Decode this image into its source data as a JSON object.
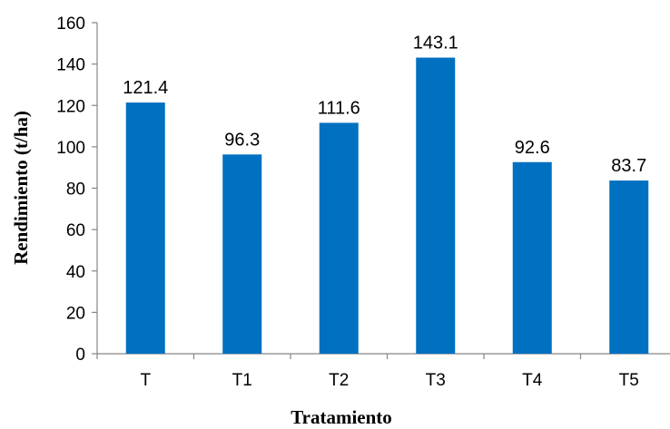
{
  "chart_data": {
    "type": "bar",
    "title": "",
    "xlabel": "Tratamiento",
    "ylabel": "Rendimiento (t/ha)",
    "categories": [
      "T",
      "T1",
      "T2",
      "T3",
      "T4",
      "T5"
    ],
    "values": [
      121.4,
      96.3,
      111.6,
      143.1,
      92.6,
      83.7
    ],
    "value_labels": [
      "121.4",
      "96.3",
      "111.6",
      "143.1",
      "92.6",
      "83.7"
    ],
    "ylim": [
      0,
      160
    ],
    "yticks": [
      0,
      20,
      40,
      60,
      80,
      100,
      120,
      140,
      160
    ],
    "ytick_labels": [
      "0",
      "20",
      "40",
      "60",
      "80",
      "100",
      "120",
      "140",
      "160"
    ],
    "grid": false,
    "legend": "none",
    "bar_color": "#0070C0",
    "axis_color": "#868686"
  }
}
